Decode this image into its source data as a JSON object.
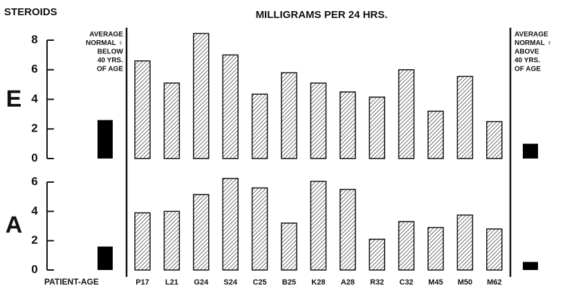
{
  "chart_data": [
    {
      "type": "bar",
      "title": "MILLIGRAMS PER 24 HRS.",
      "y_axis_title": "STEROIDS",
      "panel_label": "E",
      "annotations": [
        [
          "AVERAGE",
          "NORMAL ♀",
          "BELOW",
          "40 YRS.",
          "OF AGE"
        ],
        [
          "AVERAGE",
          "NORMAL ♀",
          "ABOVE",
          "40 YRS.",
          "OF AGE"
        ]
      ],
      "values": [
        6.6,
        5.1,
        8.45,
        7.0,
        4.35,
        5.8,
        5.1,
        4.5,
        4.15,
        6.0,
        3.2,
        5.55,
        2.5
      ],
      "normal_values": [
        2.6,
        1.0
      ],
      "color": "#222222",
      "normal_color": "#000000",
      "ylim": [
        0,
        8
      ],
      "yticks": [
        0,
        2,
        4,
        6,
        8
      ]
    },
    {
      "type": "bar",
      "panel_label": "A",
      "x_label": "PATIENT-AGE",
      "categories": [
        "P17",
        "L21",
        "G24",
        "S24",
        "C25",
        "B25",
        "K28",
        "A28",
        "R32",
        "C32",
        "M45",
        "M50",
        "M62"
      ],
      "values": [
        3.9,
        4.0,
        5.15,
        6.25,
        5.6,
        3.2,
        6.05,
        5.5,
        2.1,
        3.3,
        2.9,
        3.75,
        2.8
      ],
      "normal_values": [
        1.6,
        0.55
      ],
      "color": "#222222",
      "normal_color": "#000000",
      "ylim": [
        0,
        6
      ],
      "yticks": [
        0,
        2,
        4,
        6
      ]
    }
  ]
}
